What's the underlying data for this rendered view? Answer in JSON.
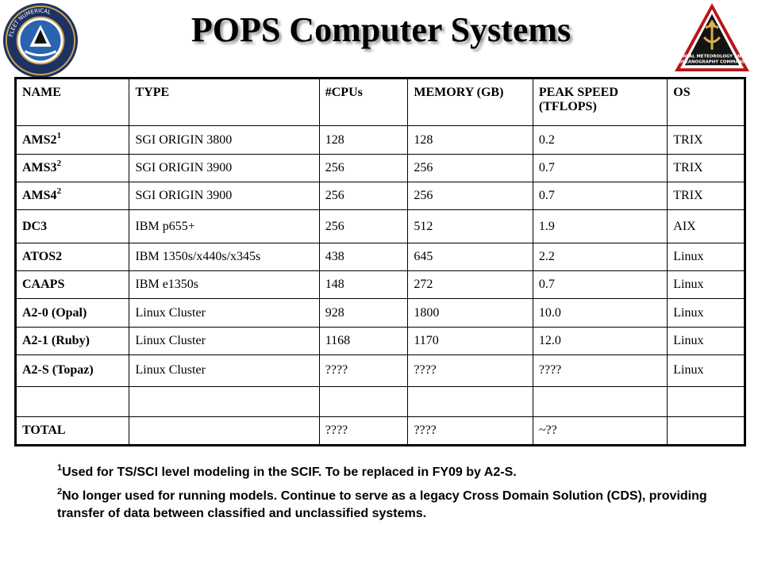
{
  "title": "POPS Computer Systems",
  "logo_left": {
    "ring_text": "Fleet Numerical Meteorology and Oceanography Center",
    "ring_color": "#1c3264"
  },
  "logo_right": {
    "text_line1": "NAVAL METEOROLOGY AND",
    "text_line2": "OCEANOGRAPHY COMMAND",
    "ring_color": "#b8141a"
  },
  "table": {
    "headers": [
      "NAME",
      "TYPE",
      "#CPUs",
      "MEMORY (GB)",
      "PEAK SPEED (TFLOPS)",
      "OS"
    ],
    "rows": [
      {
        "name": "AMS2",
        "sup": "1",
        "type": "SGI ORIGIN 3800",
        "cpus": "128",
        "memory": "128",
        "speed": "0.2",
        "os": "TRIX"
      },
      {
        "name": "AMS3",
        "sup": "2",
        "type": "SGI ORIGIN 3900",
        "cpus": "256",
        "memory": "256",
        "speed": "0.7",
        "os": "TRIX"
      },
      {
        "name": "AMS4",
        "sup": "2",
        "type": "SGI ORIGIN 3900",
        "cpus": "256",
        "memory": "256",
        "speed": "0.7",
        "os": "TRIX"
      },
      {
        "name": " DC3",
        "sup": "",
        "type": "IBM p655+",
        "cpus": "256",
        "memory": "512",
        "speed": "1.9",
        "os": "AIX"
      },
      {
        "name": "ATOS2",
        "sup": "",
        "type": "IBM 1350s/x440s/x345s",
        "cpus": "438",
        "memory": "645",
        "speed": "2.2",
        "os": "Linux"
      },
      {
        "name": "CAAPS",
        "sup": "",
        "type": "IBM e1350s",
        "cpus": "148",
        "memory": "272",
        "speed": "0.7",
        "os": "Linux"
      },
      {
        "name": "A2-0 (Opal)",
        "sup": "",
        "type": "Linux Cluster",
        "cpus": "928",
        "memory": "1800",
        "speed": "10.0",
        "os": "Linux"
      },
      {
        "name": "A2-1 (Ruby)",
        "sup": "",
        "type": "Linux Cluster",
        "cpus": "1168",
        "memory": "1170",
        "speed": "12.0",
        "os": "Linux"
      },
      {
        "name": "A2-S (Topaz)",
        "sup": "",
        "type": "Linux Cluster",
        "cpus": "????",
        "memory": "????",
        "speed": "????",
        "os": "Linux"
      },
      {
        "name": "",
        "sup": "",
        "type": "",
        "cpus": "",
        "memory": "",
        "speed": "",
        "os": ""
      }
    ],
    "total": {
      "name": "TOTAL",
      "type": "",
      "cpus": " ????",
      "memory": "????",
      "speed": "~??",
      "os": ""
    }
  },
  "footnotes": [
    {
      "sup": "1",
      "text": "Used for TS/SCI level modeling in the SCIF.  To be replaced in FY09 by A2-S."
    },
    {
      "sup": "2",
      "text": "No longer used for running models.  Continue to serve as a legacy Cross Domain Solution (CDS),  providing transfer of data between classified and unclassified systems."
    }
  ]
}
